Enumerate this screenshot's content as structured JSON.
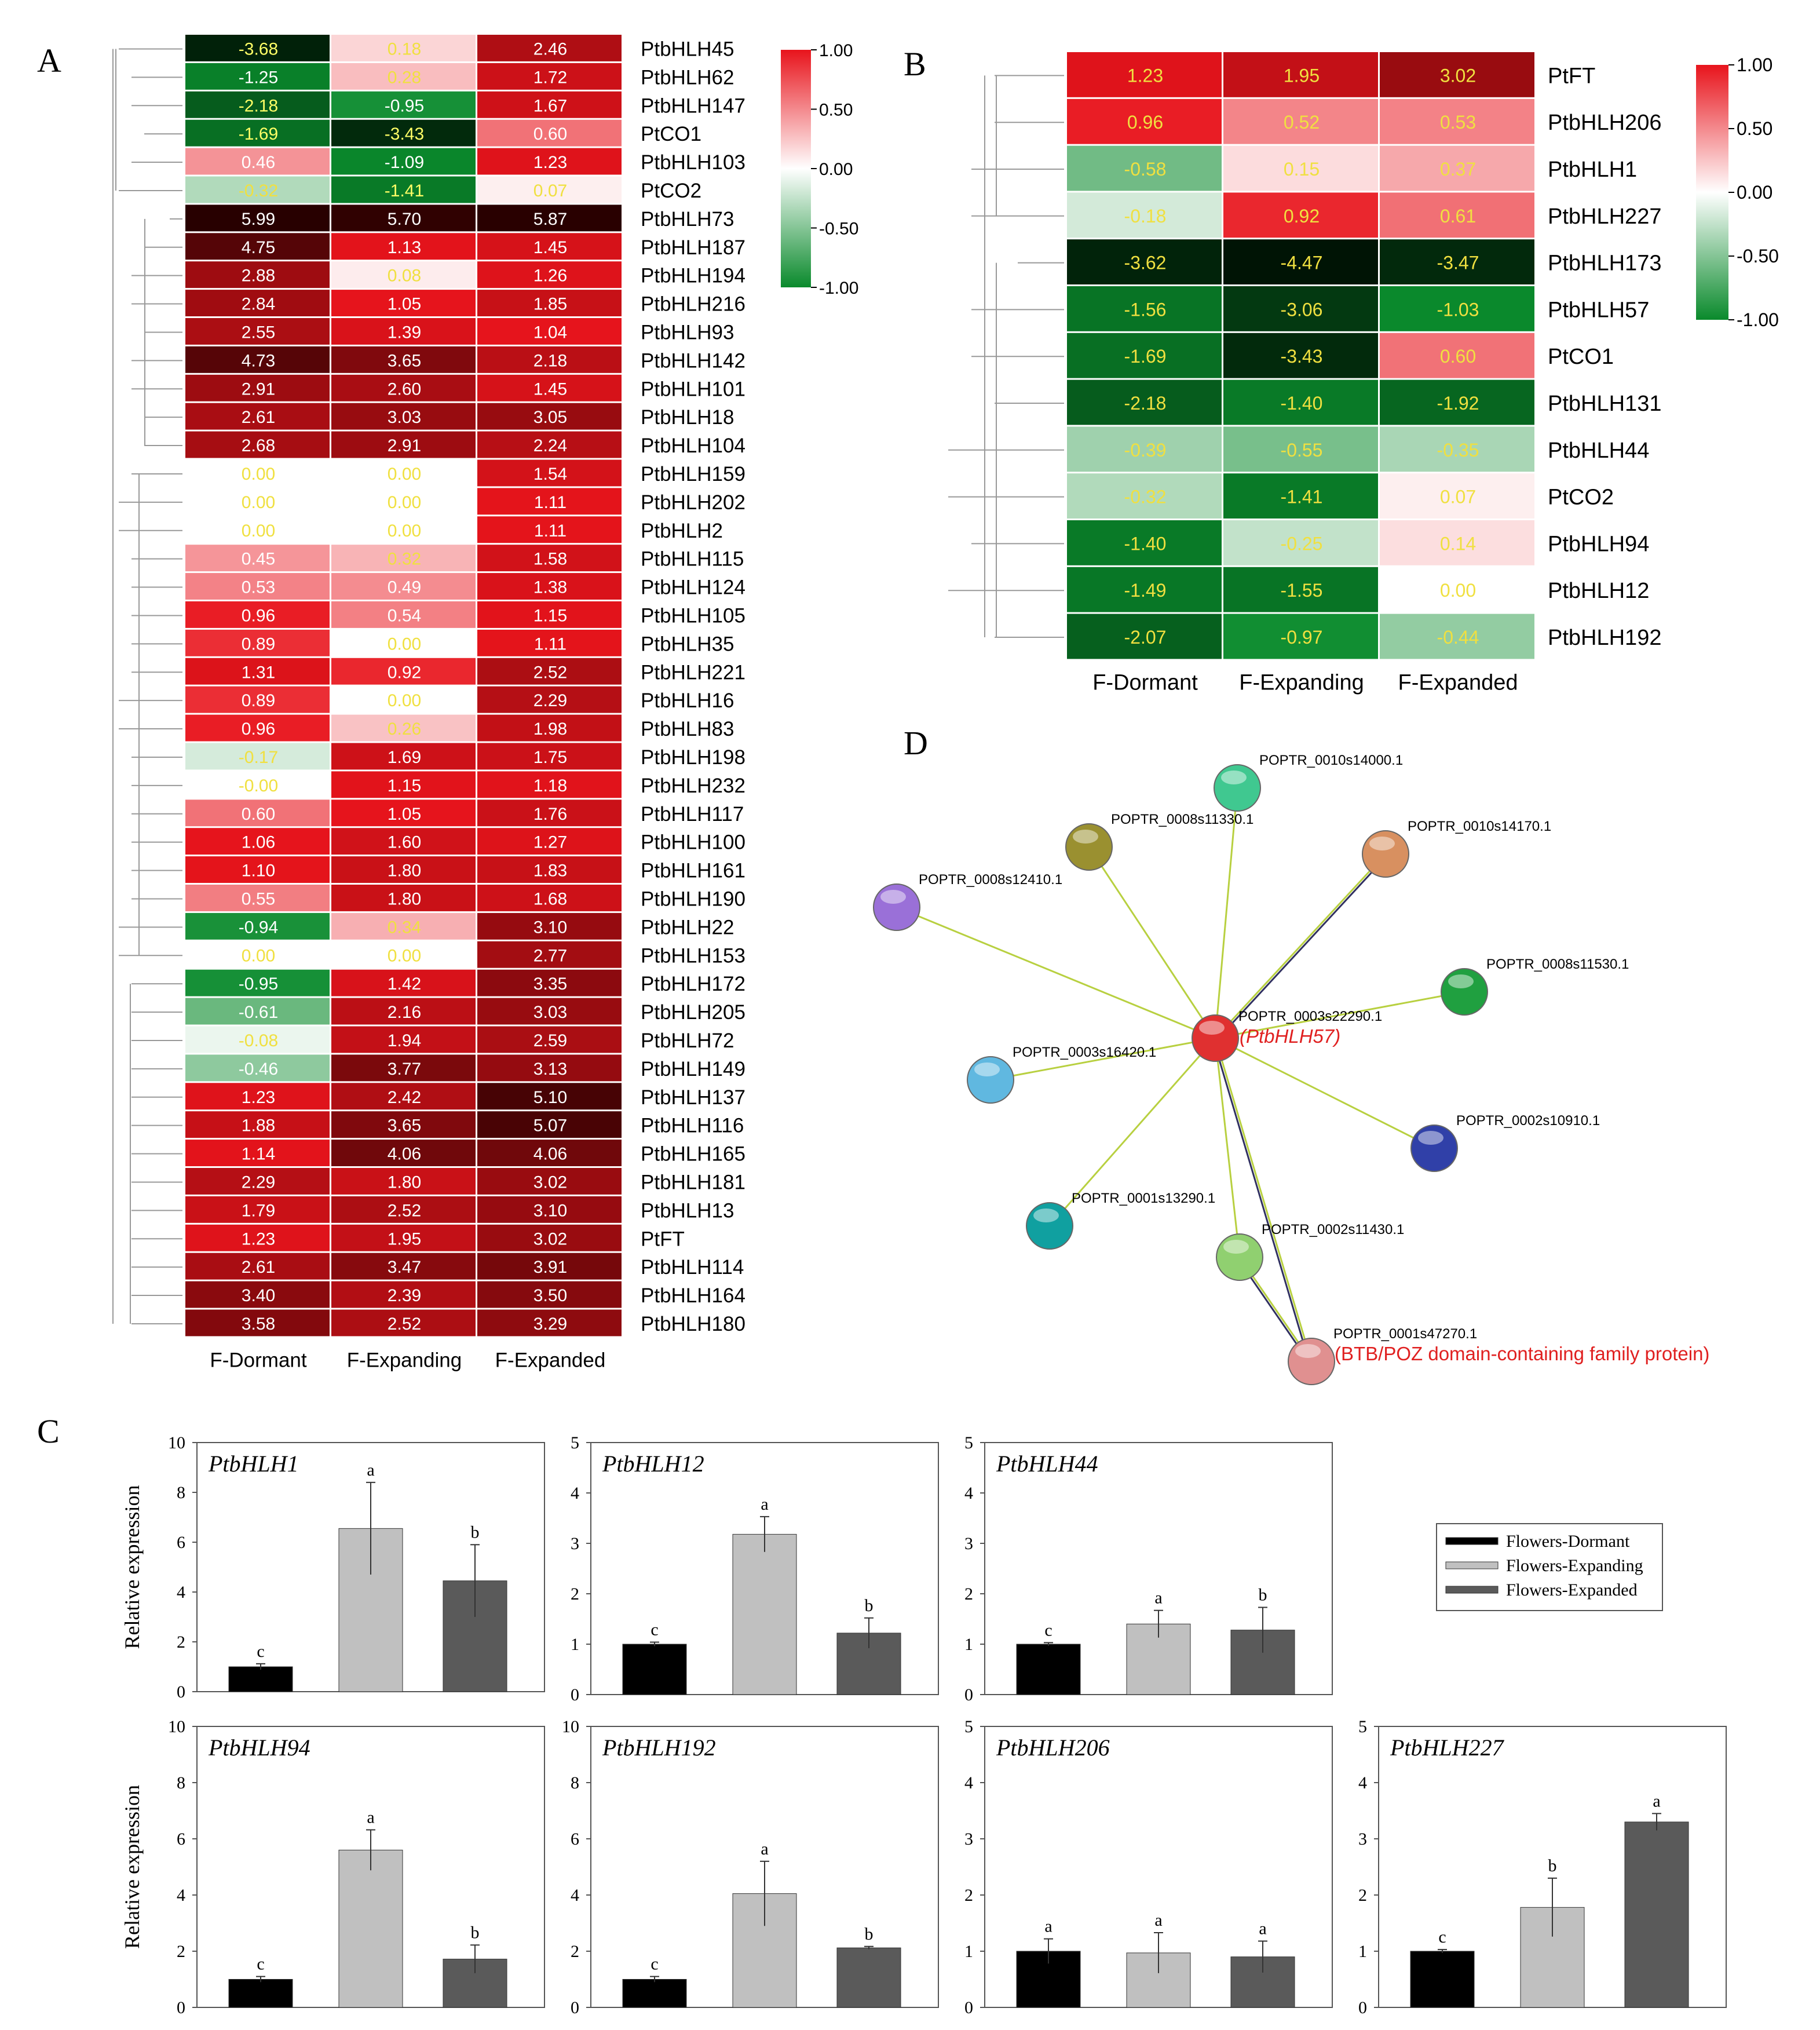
{
  "panels": {
    "A": "A",
    "B": "B",
    "C": "C",
    "D": "D"
  },
  "chart_data": [
    {
      "type": "heatmap",
      "panel": "A",
      "columns": [
        "F-Dormant",
        "F-Expanding",
        "F-Expanded"
      ],
      "rows": [
        "PtbHLH45",
        "PtbHLH62",
        "PtbHLH147",
        "PtCO1",
        "PtbHLH103",
        "PtCO2",
        "PtbHLH73",
        "PtbHLH187",
        "PtbHLH194",
        "PtbHLH216",
        "PtbHLH93",
        "PtbHLH142",
        "PtbHLH101",
        "PtbHLH18",
        "PtbHLH104",
        "PtbHLH159",
        "PtbHLH202",
        "PtbHLH2",
        "PtbHLH115",
        "PtbHLH124",
        "PtbHLH105",
        "PtbHLH35",
        "PtbHLH221",
        "PtbHLH16",
        "PtbHLH83",
        "PtbHLH198",
        "PtbHLH232",
        "PtbHLH117",
        "PtbHLH100",
        "PtbHLH161",
        "PtbHLH190",
        "PtbHLH22",
        "PtbHLH153",
        "PtbHLH172",
        "PtbHLH205",
        "PtbHLH72",
        "PtbHLH149",
        "PtbHLH137",
        "PtbHLH116",
        "PtbHLH165",
        "PtbHLH181",
        "PtbHLH13",
        "PtFT",
        "PtbHLH114",
        "PtbHLH164",
        "PtbHLH180"
      ],
      "labels": [
        [
          "-3.68",
          "0.18",
          "2.46"
        ],
        [
          "-1.25",
          "0.28",
          "1.72"
        ],
        [
          "-2.18",
          "-0.95",
          "1.67"
        ],
        [
          "-1.69",
          "-3.43",
          "0.60"
        ],
        [
          "0.46",
          "-1.09",
          "1.23"
        ],
        [
          "-0.32",
          "-1.41",
          "0.07"
        ],
        [
          "5.99",
          "5.70",
          "5.87"
        ],
        [
          "4.75",
          "1.13",
          "1.45"
        ],
        [
          "2.88",
          "0.08",
          "1.26"
        ],
        [
          "2.84",
          "1.05",
          "1.85"
        ],
        [
          "2.55",
          "1.39",
          "1.04"
        ],
        [
          "4.73",
          "3.65",
          "2.18"
        ],
        [
          "2.91",
          "2.60",
          "1.45"
        ],
        [
          "2.61",
          "3.03",
          "3.05"
        ],
        [
          "2.68",
          "2.91",
          "2.24"
        ],
        [
          "0.00",
          "0.00",
          "1.54"
        ],
        [
          "0.00",
          "0.00",
          "1.11"
        ],
        [
          "0.00",
          "0.00",
          "1.11"
        ],
        [
          "0.45",
          "0.32",
          "1.58"
        ],
        [
          "0.53",
          "0.49",
          "1.38"
        ],
        [
          "0.96",
          "0.54",
          "1.15"
        ],
        [
          "0.89",
          "0.00",
          "1.11"
        ],
        [
          "1.31",
          "0.92",
          "2.52"
        ],
        [
          "0.89",
          "0.00",
          "2.29"
        ],
        [
          "0.96",
          "0.26",
          "1.98"
        ],
        [
          "-0.17",
          "1.69",
          "1.75"
        ],
        [
          "-0.00",
          "1.15",
          "1.18"
        ],
        [
          "0.60",
          "1.05",
          "1.76"
        ],
        [
          "1.06",
          "1.60",
          "1.27"
        ],
        [
          "1.10",
          "1.80",
          "1.83"
        ],
        [
          "0.55",
          "1.80",
          "1.68"
        ],
        [
          "-0.94",
          "0.34",
          "3.10"
        ],
        [
          "0.00",
          "0.00",
          "2.77"
        ],
        [
          "-0.95",
          "1.42",
          "3.35"
        ],
        [
          "-0.61",
          "2.16",
          "3.03"
        ],
        [
          "-0.08",
          "1.94",
          "2.59"
        ],
        [
          "-0.46",
          "3.77",
          "3.13"
        ],
        [
          "1.23",
          "2.42",
          "5.10"
        ],
        [
          "1.88",
          "3.65",
          "5.07"
        ],
        [
          "1.14",
          "4.06",
          "4.06"
        ],
        [
          "2.29",
          "1.80",
          "3.02"
        ],
        [
          "1.79",
          "2.52",
          "3.10"
        ],
        [
          "1.23",
          "1.95",
          "3.02"
        ],
        [
          "2.61",
          "3.47",
          "3.91"
        ],
        [
          "3.40",
          "2.39",
          "3.50"
        ],
        [
          "3.58",
          "2.52",
          "3.29"
        ]
      ],
      "colorbar": {
        "ticks": [
          "1.00",
          "0.50",
          "0.00",
          "-0.50",
          "-1.00"
        ],
        "colors": {
          "high": "#e8141c",
          "mid": "#ffffff",
          "low": "#0a8a2c",
          "max_dark": "#3a0000",
          "min_dark": "#001a05"
        }
      },
      "label_color_light": "#ffff66"
    },
    {
      "type": "heatmap",
      "panel": "B",
      "columns": [
        "F-Dormant",
        "F-Expanding",
        "F-Expanded"
      ],
      "rows": [
        "PtFT",
        "PtbHLH206",
        "PtbHLH1",
        "PtbHLH227",
        "PtbHLH173",
        "PtbHLH57",
        "PtCO1",
        "PtbHLH131",
        "PtbHLH44",
        "PtCO2",
        "PtbHLH94",
        "PtbHLH12",
        "PtbHLH192"
      ],
      "labels": [
        [
          "1.23",
          "1.95",
          "3.02"
        ],
        [
          "0.96",
          "0.52",
          "0.53"
        ],
        [
          "-0.58",
          "0.15",
          "0.37"
        ],
        [
          "-0.18",
          "0.92",
          "0.61"
        ],
        [
          "-3.62",
          "-4.47",
          "-3.47"
        ],
        [
          "-1.56",
          "-3.06",
          "-1.03"
        ],
        [
          "-1.69",
          "-3.43",
          "0.60"
        ],
        [
          "-2.18",
          "-1.40",
          "-1.92"
        ],
        [
          "-0.39",
          "-0.55",
          "-0.35"
        ],
        [
          "-0.32",
          "-1.41",
          "0.07"
        ],
        [
          "-1.40",
          "-0.25",
          "0.14"
        ],
        [
          "-1.49",
          "-1.55",
          "0.00"
        ],
        [
          "-2.07",
          "-0.97",
          "-0.44"
        ]
      ],
      "colorbar": {
        "ticks": [
          "1.00",
          "0.50",
          "0.00",
          "-0.50",
          "-1.00"
        ]
      }
    },
    {
      "type": "bar",
      "panel": "C",
      "ylabel": "Relative expression",
      "categories": [
        "Flowers-Dormant",
        "Flowers-Expanding",
        "Flowers-Expanded"
      ],
      "legend": [
        "Flowers-Dormant",
        "Flowers-Expanding",
        "Flowers-Expanded"
      ],
      "legend_position": "top-right",
      "bar_colors": [
        "#000000",
        "#c0c0c0",
        "#5a5a5a"
      ],
      "subplots": [
        {
          "gene": "PtbHLH1",
          "ylim": [
            0,
            10
          ],
          "ticks": [
            0,
            2,
            4,
            6,
            8,
            10
          ],
          "values": [
            1.0,
            6.55,
            4.45
          ],
          "errors": [
            0.12,
            1.85,
            1.45
          ],
          "letters": [
            "c",
            "a",
            "b"
          ],
          "ylabel_shown": true
        },
        {
          "gene": "PtbHLH12",
          "ylim": [
            0,
            5
          ],
          "ticks": [
            0,
            1,
            2,
            3,
            4,
            5
          ],
          "values": [
            1.0,
            3.18,
            1.22
          ],
          "errors": [
            0.04,
            0.35,
            0.3
          ],
          "letters": [
            "c",
            "a",
            "b"
          ],
          "ylabel_shown": false
        },
        {
          "gene": "PtbHLH44",
          "ylim": [
            0,
            5
          ],
          "ticks": [
            0,
            1,
            2,
            3,
            4,
            5
          ],
          "values": [
            1.0,
            1.4,
            1.28
          ],
          "errors": [
            0.03,
            0.27,
            0.45
          ],
          "letters": [
            "c",
            "a",
            "b"
          ],
          "ylabel_shown": false
        },
        {
          "gene": "PtbHLH94",
          "ylim": [
            0,
            10
          ],
          "ticks": [
            0,
            2,
            4,
            6,
            8,
            10
          ],
          "values": [
            1.0,
            5.6,
            1.72
          ],
          "errors": [
            0.1,
            0.72,
            0.5
          ],
          "letters": [
            "c",
            "a",
            "b"
          ],
          "ylabel_shown": true
        },
        {
          "gene": "PtbHLH192",
          "ylim": [
            0,
            10
          ],
          "ticks": [
            0,
            2,
            4,
            6,
            8,
            10
          ],
          "values": [
            1.0,
            4.05,
            2.12
          ],
          "errors": [
            0.1,
            1.15,
            0.05
          ],
          "letters": [
            "c",
            "a",
            "b"
          ],
          "ylabel_shown": false
        },
        {
          "gene": "PtbHLH206",
          "ylim": [
            0,
            5
          ],
          "ticks": [
            0,
            1,
            2,
            3,
            4,
            5
          ],
          "values": [
            1.0,
            0.97,
            0.9
          ],
          "errors": [
            0.22,
            0.36,
            0.28
          ],
          "letters": [
            "a",
            "a",
            "a"
          ],
          "ylabel_shown": false
        },
        {
          "gene": "PtbHLH227",
          "ylim": [
            0,
            5
          ],
          "ticks": [
            0,
            1,
            2,
            3,
            4,
            5
          ],
          "values": [
            1.0,
            1.78,
            3.3
          ],
          "errors": [
            0.03,
            0.52,
            0.15
          ],
          "letters": [
            "c",
            "b",
            "a"
          ],
          "ylabel_shown": false
        }
      ]
    },
    {
      "type": "network",
      "panel": "D",
      "nodes": [
        {
          "id": "POPTR_0003s22290.1",
          "label": "POPTR_0003s22290.1",
          "sublabel": "(PtbHLH57)",
          "color": "#e03030",
          "center": true
        },
        {
          "id": "POPTR_0010s14000.1",
          "label": "POPTR_0010s14000.1",
          "color": "#40c890"
        },
        {
          "id": "POPTR_0008s11330.1",
          "label": "POPTR_0008s11330.1",
          "color": "#9a9030"
        },
        {
          "id": "POPTR_0010s14170.1",
          "label": "POPTR_0010s14170.1",
          "color": "#d89060"
        },
        {
          "id": "POPTR_0008s12410.1",
          "label": "POPTR_0008s12410.1",
          "color": "#9a70d8"
        },
        {
          "id": "POPTR_0008s11530.1",
          "label": "POPTR_0008s11530.1",
          "color": "#20a040"
        },
        {
          "id": "POPTR_0003s16420.1",
          "label": "POPTR_0003s16420.1",
          "color": "#60b8e0"
        },
        {
          "id": "POPTR_0002s10910.1",
          "label": "POPTR_0002s10910.1",
          "color": "#3040a8"
        },
        {
          "id": "POPTR_0001s13290.1",
          "label": "POPTR_0001s13290.1",
          "color": "#10a0a0"
        },
        {
          "id": "POPTR_0002s11430.1",
          "label": "POPTR_0002s11430.1",
          "color": "#90d070"
        },
        {
          "id": "POPTR_0001s47270.1",
          "label": "POPTR_0001s47270.1",
          "sublabel": "(BTB/POZ domain-containing family protein)",
          "color": "#e09090"
        }
      ],
      "edges": [
        {
          "from": "POPTR_0003s22290.1",
          "to": "POPTR_0010s14000.1",
          "colors": [
            "#b8d040"
          ]
        },
        {
          "from": "POPTR_0003s22290.1",
          "to": "POPTR_0008s11330.1",
          "colors": [
            "#b8d040"
          ]
        },
        {
          "from": "POPTR_0003s22290.1",
          "to": "POPTR_0010s14170.1",
          "colors": [
            "#b8d040",
            "#303060"
          ]
        },
        {
          "from": "POPTR_0003s22290.1",
          "to": "POPTR_0008s12410.1",
          "colors": [
            "#b8d040"
          ]
        },
        {
          "from": "POPTR_0003s22290.1",
          "to": "POPTR_0008s11530.1",
          "colors": [
            "#b8d040"
          ]
        },
        {
          "from": "POPTR_0003s22290.1",
          "to": "POPTR_0003s16420.1",
          "colors": [
            "#b8d040"
          ]
        },
        {
          "from": "POPTR_0003s22290.1",
          "to": "POPTR_0002s10910.1",
          "colors": [
            "#b8d040"
          ]
        },
        {
          "from": "POPTR_0003s22290.1",
          "to": "POPTR_0001s13290.1",
          "colors": [
            "#b8d040"
          ]
        },
        {
          "from": "POPTR_0003s22290.1",
          "to": "POPTR_0002s11430.1",
          "colors": [
            "#b8d040"
          ]
        },
        {
          "from": "POPTR_0003s22290.1",
          "to": "POPTR_0001s47270.1",
          "colors": [
            "#b8d040",
            "#303060"
          ]
        },
        {
          "from": "POPTR_0002s11430.1",
          "to": "POPTR_0001s47270.1",
          "colors": [
            "#b8d040",
            "#303060"
          ]
        }
      ]
    }
  ]
}
